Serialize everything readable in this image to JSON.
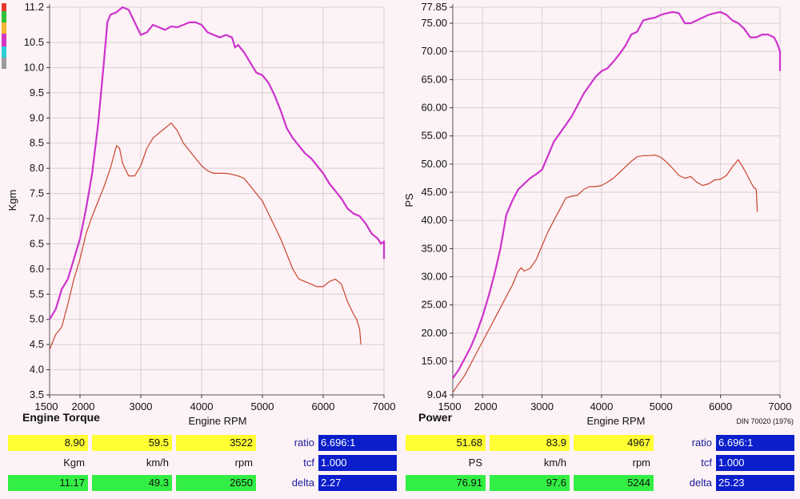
{
  "legend_swatches": [
    "#e83a2a",
    "#2ec23a",
    "#f2b632",
    "#d437c4",
    "#29d0d8",
    "#9a9a9a"
  ],
  "chart_data": [
    {
      "type": "line",
      "title": "Engine Torque",
      "xlabel": "Engine RPM",
      "ylabel": "Kgm",
      "xlim": [
        1500,
        7000
      ],
      "ylim": [
        3.5,
        11.2
      ],
      "x_ticks": [
        "1500",
        "2000",
        "3000",
        "4000",
        "5000",
        "6000",
        "7000"
      ],
      "y_ticks": [
        "3.5",
        "4.0",
        "4.5",
        "5.0",
        "5.5",
        "6.0",
        "6.5",
        "7.0",
        "7.5",
        "8.0",
        "8.5",
        "9.0",
        "9.5",
        "10.0",
        "10.5",
        "11.2"
      ],
      "grid": true,
      "series": [
        {
          "color": "#cc33cc",
          "x": [
            1500,
            1600,
            1700,
            1800,
            1900,
            2000,
            2100,
            2200,
            2300,
            2400,
            2450,
            2500,
            2600,
            2700,
            2800,
            2900,
            3000,
            3100,
            3200,
            3300,
            3400,
            3500,
            3600,
            3700,
            3800,
            3900,
            4000,
            4100,
            4200,
            4300,
            4400,
            4500,
            4550,
            4600,
            4700,
            4800,
            4900,
            5000,
            5100,
            5200,
            5300,
            5400,
            5500,
            5600,
            5700,
            5800,
            5900,
            6000,
            6100,
            6200,
            6300,
            6400,
            6500,
            6600,
            6700,
            6800,
            6900,
            6950,
            7000,
            7000
          ],
          "y": [
            5.0,
            5.2,
            5.6,
            5.8,
            6.2,
            6.6,
            7.2,
            7.9,
            8.9,
            10.2,
            10.9,
            11.05,
            11.1,
            11.2,
            11.15,
            10.9,
            10.65,
            10.7,
            10.85,
            10.8,
            10.75,
            10.82,
            10.8,
            10.85,
            10.9,
            10.9,
            10.85,
            10.7,
            10.65,
            10.6,
            10.65,
            10.6,
            10.4,
            10.45,
            10.3,
            10.1,
            9.9,
            9.85,
            9.7,
            9.45,
            9.15,
            8.8,
            8.6,
            8.45,
            8.3,
            8.2,
            8.05,
            7.9,
            7.7,
            7.55,
            7.4,
            7.2,
            7.1,
            7.05,
            6.9,
            6.7,
            6.6,
            6.5,
            6.55,
            6.2
          ]
        },
        {
          "color": "#c8452c",
          "x": [
            1500,
            1600,
            1700,
            1800,
            1900,
            2000,
            2100,
            2200,
            2300,
            2400,
            2500,
            2600,
            2650,
            2700,
            2800,
            2900,
            3000,
            3100,
            3200,
            3300,
            3400,
            3500,
            3600,
            3700,
            3800,
            3900,
            4000,
            4100,
            4200,
            4300,
            4400,
            4500,
            4600,
            4700,
            4800,
            4900,
            5000,
            5100,
            5200,
            5300,
            5400,
            5500,
            5600,
            5700,
            5800,
            5900,
            6000,
            6100,
            6200,
            6300,
            6400,
            6500,
            6550,
            6600,
            6620
          ],
          "y": [
            4.4,
            4.7,
            4.85,
            5.3,
            5.8,
            6.2,
            6.7,
            7.05,
            7.35,
            7.65,
            8.0,
            8.45,
            8.4,
            8.1,
            7.85,
            7.85,
            8.05,
            8.4,
            8.6,
            8.7,
            8.8,
            8.9,
            8.75,
            8.5,
            8.35,
            8.2,
            8.05,
            7.95,
            7.9,
            7.9,
            7.9,
            7.88,
            7.85,
            7.8,
            7.65,
            7.5,
            7.35,
            7.1,
            6.85,
            6.6,
            6.3,
            6.0,
            5.8,
            5.75,
            5.7,
            5.65,
            5.65,
            5.75,
            5.8,
            5.7,
            5.35,
            5.1,
            5.0,
            4.8,
            4.5
          ]
        }
      ],
      "readout": {
        "row1": {
          "values": [
            "8.90",
            "59.5",
            "3522"
          ],
          "ratio_label": "ratio",
          "ratio_value": "6.696:1"
        },
        "row2": {
          "units": [
            "Kgm",
            "km/h",
            "rpm"
          ],
          "tcf_label": "tcf",
          "tcf_value": "1.000"
        },
        "row3": {
          "values": [
            "11.17",
            "49.3",
            "2650"
          ],
          "delta_label": "delta",
          "delta_value": "2.27"
        }
      }
    },
    {
      "type": "line",
      "title": "Power",
      "xlabel": "Engine RPM",
      "ylabel": "PS",
      "note": "DIN 70020 (1976)",
      "xlim": [
        1500,
        7000
      ],
      "ylim": [
        9.04,
        77.85
      ],
      "x_ticks": [
        "1500",
        "2000",
        "3000",
        "4000",
        "5000",
        "6000",
        "7000"
      ],
      "y_ticks": [
        "9.04",
        "15.00",
        "20.00",
        "25.00",
        "30.00",
        "35.00",
        "40.00",
        "45.00",
        "50.00",
        "55.00",
        "60.00",
        "65.00",
        "70.00",
        "75.00",
        "77.85"
      ],
      "grid": true,
      "series": [
        {
          "color": "#cc33cc",
          "x": [
            1500,
            1600,
            1700,
            1800,
            1900,
            2000,
            2100,
            2200,
            2300,
            2400,
            2500,
            2600,
            2700,
            2800,
            2900,
            3000,
            3100,
            3200,
            3300,
            3400,
            3500,
            3600,
            3700,
            3800,
            3900,
            4000,
            4100,
            4200,
            4300,
            4400,
            4500,
            4600,
            4700,
            4800,
            4900,
            5000,
            5100,
            5200,
            5300,
            5400,
            5500,
            5600,
            5700,
            5800,
            5900,
            6000,
            6100,
            6200,
            6300,
            6400,
            6500,
            6600,
            6700,
            6800,
            6900,
            6950,
            7000,
            7000
          ],
          "y": [
            12.0,
            13.5,
            15.5,
            17.5,
            20.0,
            23.0,
            26.5,
            30.5,
            35.0,
            41.0,
            43.5,
            45.5,
            46.5,
            47.5,
            48.2,
            49.0,
            51.5,
            54.0,
            55.5,
            57.0,
            58.5,
            60.5,
            62.5,
            64.0,
            65.5,
            66.5,
            67.0,
            68.2,
            69.5,
            71.0,
            73.0,
            73.5,
            75.5,
            75.8,
            76.0,
            76.5,
            76.8,
            77.0,
            76.8,
            75.0,
            75.0,
            75.5,
            76.0,
            76.5,
            76.8,
            77.0,
            76.5,
            75.5,
            75.0,
            74.0,
            72.5,
            72.5,
            73.0,
            73.0,
            72.5,
            71.5,
            70.0,
            66.5
          ]
        },
        {
          "color": "#c8452c",
          "x": [
            1500,
            1600,
            1700,
            1800,
            1900,
            2000,
            2100,
            2200,
            2300,
            2400,
            2500,
            2600,
            2650,
            2700,
            2800,
            2900,
            3000,
            3100,
            3200,
            3300,
            3400,
            3500,
            3600,
            3700,
            3800,
            3900,
            4000,
            4100,
            4200,
            4300,
            4400,
            4500,
            4600,
            4700,
            4800,
            4900,
            5000,
            5100,
            5200,
            5300,
            5400,
            5500,
            5600,
            5700,
            5800,
            5900,
            6000,
            6100,
            6200,
            6300,
            6400,
            6500,
            6550,
            6600,
            6620
          ],
          "y": [
            9.5,
            11.0,
            12.5,
            14.5,
            16.5,
            18.5,
            20.5,
            22.5,
            24.5,
            26.5,
            28.5,
            31.0,
            31.6,
            31.0,
            31.5,
            33.0,
            35.5,
            38.0,
            40.0,
            42.0,
            44.0,
            44.3,
            44.5,
            45.5,
            46.0,
            46.0,
            46.2,
            46.8,
            47.5,
            48.5,
            49.5,
            50.5,
            51.3,
            51.5,
            51.5,
            51.6,
            51.2,
            50.3,
            49.2,
            48.0,
            47.5,
            47.8,
            46.8,
            46.2,
            46.5,
            47.2,
            47.3,
            48.0,
            49.5,
            50.8,
            49.0,
            47.0,
            46.0,
            45.5,
            41.5
          ]
        }
      ],
      "readout": {
        "row1": {
          "values": [
            "51.68",
            "83.9",
            "4967"
          ],
          "ratio_label": "ratio",
          "ratio_value": "6.696:1"
        },
        "row2": {
          "units": [
            "PS",
            "km/h",
            "rpm"
          ],
          "tcf_label": "tcf",
          "tcf_value": "1.000"
        },
        "row3": {
          "values": [
            "76.91",
            "97.6",
            "5244"
          ],
          "delta_label": "delta",
          "delta_value": "25.23"
        }
      }
    }
  ]
}
